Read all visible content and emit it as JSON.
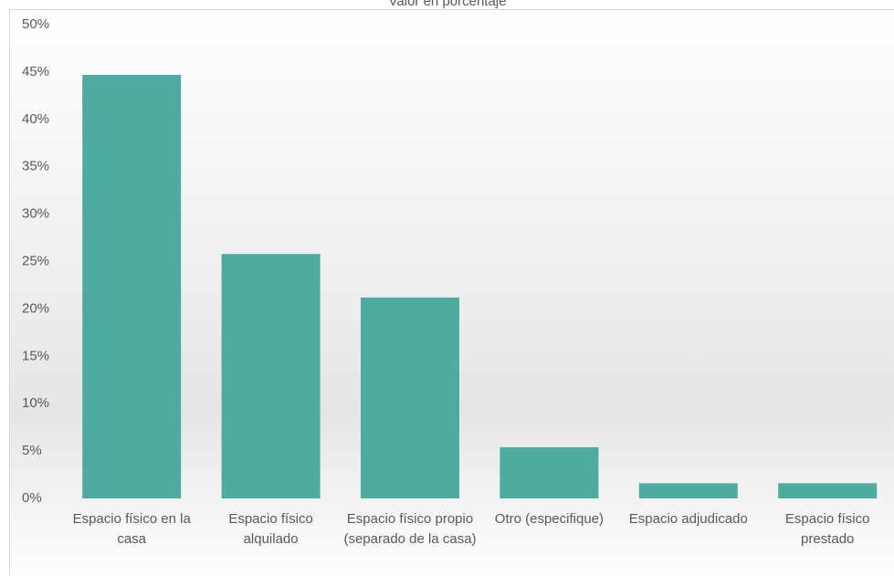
{
  "chart_data": {
    "type": "bar",
    "title": "Valor en porcentaje",
    "categories": [
      "Espacio físico en la casa",
      "Espacio físico alquilado",
      "Espacio físico propio (separado de la casa)",
      "Otro (especifique)",
      "Espacio adjudicado",
      "Espacio físico prestado"
    ],
    "values": [
      44.7,
      25.8,
      21.2,
      5.4,
      1.6,
      1.6
    ],
    "color": "#4fab9f",
    "ylim": [
      0,
      50
    ],
    "yticks": [
      {
        "value": 0,
        "label": "0%"
      },
      {
        "value": 5,
        "label": "5%"
      },
      {
        "value": 10,
        "label": "10%"
      },
      {
        "value": 15,
        "label": "15%"
      },
      {
        "value": 20,
        "label": "20%"
      },
      {
        "value": 25,
        "label": "25%"
      },
      {
        "value": 30,
        "label": "30%"
      },
      {
        "value": 35,
        "label": "35%"
      },
      {
        "value": 40,
        "label": "40%"
      },
      {
        "value": 45,
        "label": "45%"
      },
      {
        "value": 50,
        "label": "50%"
      }
    ],
    "grid": false
  }
}
